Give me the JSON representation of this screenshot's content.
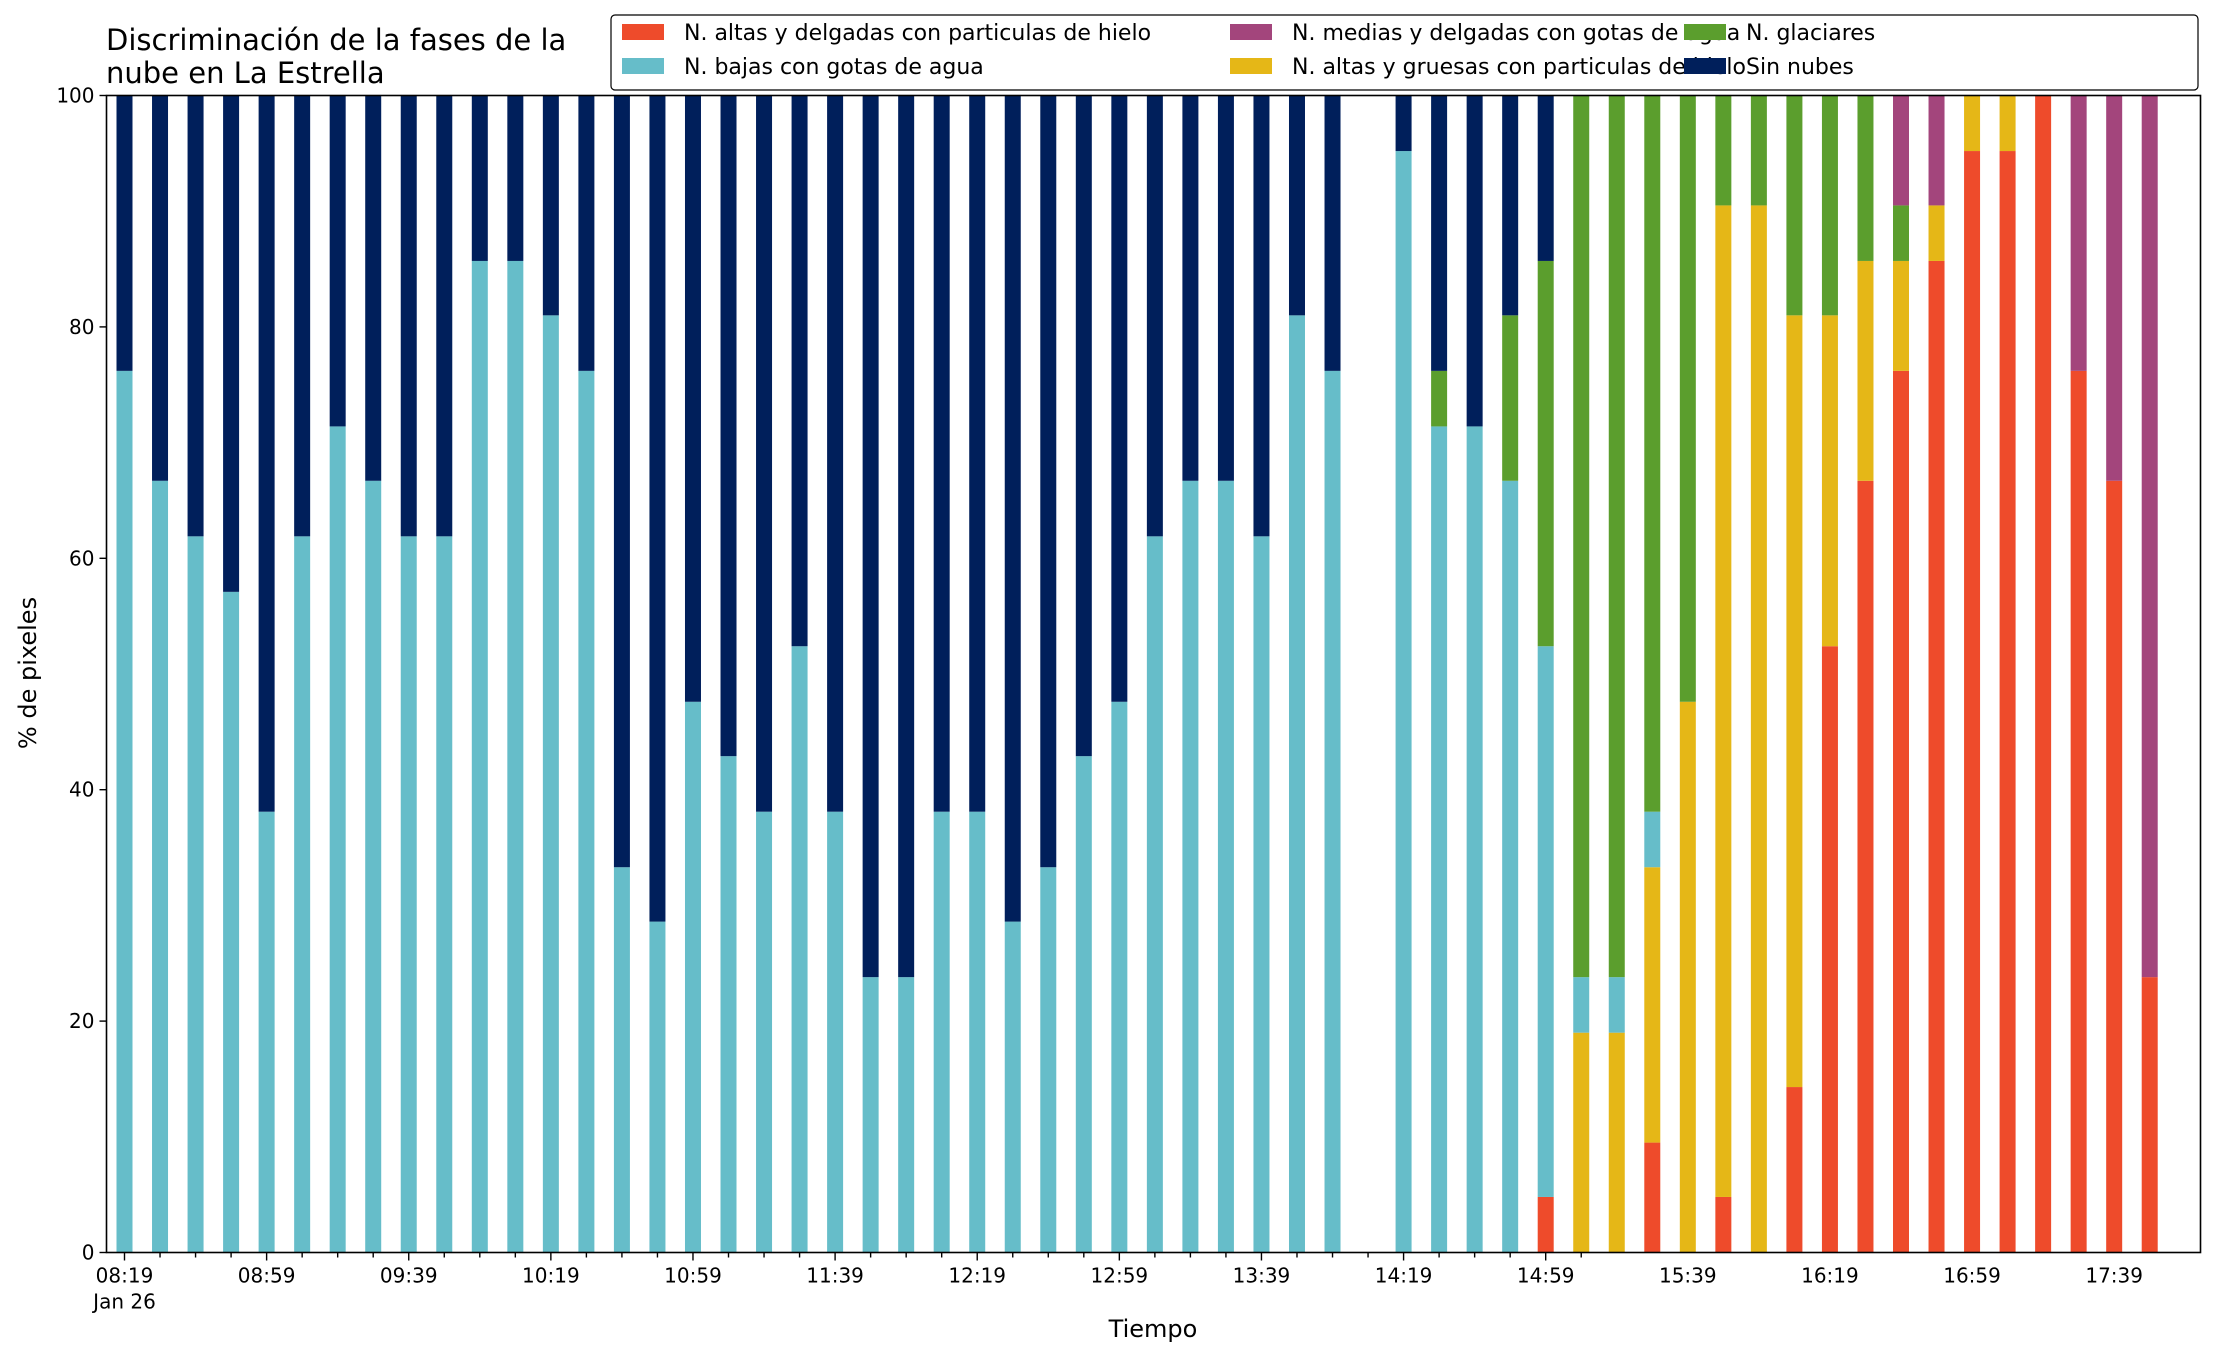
{
  "chart_data": {
    "type": "bar",
    "stacked": true,
    "title_lines": [
      "Discriminación de la fases de la",
      "nube en La Estrella"
    ],
    "xlabel": "Tiempo",
    "ylabel": "% de pixeles",
    "ylim": [
      0,
      100
    ],
    "yticks": [
      "0",
      "20",
      "40",
      "60",
      "80",
      "100"
    ],
    "xtick_labels": [
      "08:19",
      "08:59",
      "09:39",
      "10:19",
      "10:59",
      "11:39",
      "12:19",
      "12:59",
      "13:39",
      "14:19",
      "14:59",
      "15:39",
      "16:19",
      "16:59",
      "17:39"
    ],
    "xtick_sublabel": "Jan 26",
    "grid": false,
    "legend_position": "top-right",
    "series_order_bottom_to_top": [
      "altas_delgadas",
      "altas_gruesas",
      "bajas",
      "glaciares",
      "medias",
      "sin_nubes"
    ],
    "legend": [
      {
        "key": "altas_delgadas",
        "name": "N. altas y delgadas con particulas de hielo",
        "color": "#ee4b2b"
      },
      {
        "key": "bajas",
        "name": "N. bajas con gotas de agua",
        "color": "#66bdc9"
      },
      {
        "key": "medias",
        "name": "N. medias y delgadas con gotas de agua",
        "color": "#a3457c"
      },
      {
        "key": "altas_gruesas",
        "name": "N. altas y gruesas con particulas de hielo",
        "color": "#e5b717"
      },
      {
        "key": "glaciares",
        "name": "N. glaciares",
        "color": "#5b9e2d"
      },
      {
        "key": "sin_nubes",
        "name": "Sin nubes",
        "color": "#001f5b"
      }
    ],
    "bars": [
      {
        "altas_delgadas": 0,
        "altas_gruesas": 0,
        "bajas": 76.2,
        "glaciares": 0,
        "medias": 0,
        "sin_nubes": 23.8
      },
      {
        "altas_delgadas": 0,
        "altas_gruesas": 0,
        "bajas": 66.7,
        "glaciares": 0,
        "medias": 0,
        "sin_nubes": 33.3
      },
      {
        "altas_delgadas": 0,
        "altas_gruesas": 0,
        "bajas": 61.9,
        "glaciares": 0,
        "medias": 0,
        "sin_nubes": 38.1
      },
      {
        "altas_delgadas": 0,
        "altas_gruesas": 0,
        "bajas": 57.1,
        "glaciares": 0,
        "medias": 0,
        "sin_nubes": 42.9
      },
      {
        "altas_delgadas": 0,
        "altas_gruesas": 0,
        "bajas": 38.1,
        "glaciares": 0,
        "medias": 0,
        "sin_nubes": 61.9
      },
      {
        "altas_delgadas": 0,
        "altas_gruesas": 0,
        "bajas": 61.9,
        "glaciares": 0,
        "medias": 0,
        "sin_nubes": 38.1
      },
      {
        "altas_delgadas": 0,
        "altas_gruesas": 0,
        "bajas": 71.4,
        "glaciares": 0,
        "medias": 0,
        "sin_nubes": 28.6
      },
      {
        "altas_delgadas": 0,
        "altas_gruesas": 0,
        "bajas": 66.7,
        "glaciares": 0,
        "medias": 0,
        "sin_nubes": 33.3
      },
      {
        "altas_delgadas": 0,
        "altas_gruesas": 0,
        "bajas": 61.9,
        "glaciares": 0,
        "medias": 0,
        "sin_nubes": 38.1
      },
      {
        "altas_delgadas": 0,
        "altas_gruesas": 0,
        "bajas": 61.9,
        "glaciares": 0,
        "medias": 0,
        "sin_nubes": 38.1
      },
      {
        "altas_delgadas": 0,
        "altas_gruesas": 0,
        "bajas": 85.7,
        "glaciares": 0,
        "medias": 0,
        "sin_nubes": 14.3
      },
      {
        "altas_delgadas": 0,
        "altas_gruesas": 0,
        "bajas": 85.7,
        "glaciares": 0,
        "medias": 0,
        "sin_nubes": 14.3
      },
      {
        "altas_delgadas": 0,
        "altas_gruesas": 0,
        "bajas": 81.0,
        "glaciares": 0,
        "medias": 0,
        "sin_nubes": 19.0
      },
      {
        "altas_delgadas": 0,
        "altas_gruesas": 0,
        "bajas": 76.2,
        "glaciares": 0,
        "medias": 0,
        "sin_nubes": 23.8
      },
      {
        "altas_delgadas": 0,
        "altas_gruesas": 0,
        "bajas": 33.3,
        "glaciares": 0,
        "medias": 0,
        "sin_nubes": 66.7
      },
      {
        "altas_delgadas": 0,
        "altas_gruesas": 0,
        "bajas": 28.6,
        "glaciares": 0,
        "medias": 0,
        "sin_nubes": 71.4
      },
      {
        "altas_delgadas": 0,
        "altas_gruesas": 0,
        "bajas": 47.6,
        "glaciares": 0,
        "medias": 0,
        "sin_nubes": 52.4
      },
      {
        "altas_delgadas": 0,
        "altas_gruesas": 0,
        "bajas": 42.9,
        "glaciares": 0,
        "medias": 0,
        "sin_nubes": 57.1
      },
      {
        "altas_delgadas": 0,
        "altas_gruesas": 0,
        "bajas": 38.1,
        "glaciares": 0,
        "medias": 0,
        "sin_nubes": 61.9
      },
      {
        "altas_delgadas": 0,
        "altas_gruesas": 0,
        "bajas": 52.4,
        "glaciares": 0,
        "medias": 0,
        "sin_nubes": 47.6
      },
      {
        "altas_delgadas": 0,
        "altas_gruesas": 0,
        "bajas": 38.1,
        "glaciares": 0,
        "medias": 0,
        "sin_nubes": 61.9
      },
      {
        "altas_delgadas": 0,
        "altas_gruesas": 0,
        "bajas": 23.8,
        "glaciares": 0,
        "medias": 0,
        "sin_nubes": 76.2
      },
      {
        "altas_delgadas": 0,
        "altas_gruesas": 0,
        "bajas": 23.8,
        "glaciares": 0,
        "medias": 0,
        "sin_nubes": 76.2
      },
      {
        "altas_delgadas": 0,
        "altas_gruesas": 0,
        "bajas": 38.1,
        "glaciares": 0,
        "medias": 0,
        "sin_nubes": 61.9
      },
      {
        "altas_delgadas": 0,
        "altas_gruesas": 0,
        "bajas": 38.1,
        "glaciares": 0,
        "medias": 0,
        "sin_nubes": 61.9
      },
      {
        "altas_delgadas": 0,
        "altas_gruesas": 0,
        "bajas": 28.6,
        "glaciares": 0,
        "medias": 0,
        "sin_nubes": 71.4
      },
      {
        "altas_delgadas": 0,
        "altas_gruesas": 0,
        "bajas": 33.3,
        "glaciares": 0,
        "medias": 0,
        "sin_nubes": 66.7
      },
      {
        "altas_delgadas": 0,
        "altas_gruesas": 0,
        "bajas": 42.9,
        "glaciares": 0,
        "medias": 0,
        "sin_nubes": 57.1
      },
      {
        "altas_delgadas": 0,
        "altas_gruesas": 0,
        "bajas": 47.6,
        "glaciares": 0,
        "medias": 0,
        "sin_nubes": 52.4
      },
      {
        "altas_delgadas": 0,
        "altas_gruesas": 0,
        "bajas": 61.9,
        "glaciares": 0,
        "medias": 0,
        "sin_nubes": 38.1
      },
      {
        "altas_delgadas": 0,
        "altas_gruesas": 0,
        "bajas": 66.7,
        "glaciares": 0,
        "medias": 0,
        "sin_nubes": 33.3
      },
      {
        "altas_delgadas": 0,
        "altas_gruesas": 0,
        "bajas": 66.7,
        "glaciares": 0,
        "medias": 0,
        "sin_nubes": 33.3
      },
      {
        "altas_delgadas": 0,
        "altas_gruesas": 0,
        "bajas": 61.9,
        "glaciares": 0,
        "medias": 0,
        "sin_nubes": 38.1
      },
      {
        "altas_delgadas": 0,
        "altas_gruesas": 0,
        "bajas": 81.0,
        "glaciares": 0,
        "medias": 0,
        "sin_nubes": 19.0
      },
      {
        "altas_delgadas": 0,
        "altas_gruesas": 0,
        "bajas": 76.2,
        "glaciares": 0,
        "medias": 0,
        "sin_nubes": 23.8
      },
      null,
      {
        "altas_delgadas": 0,
        "altas_gruesas": 0,
        "bajas": 95.2,
        "glaciares": 0,
        "medias": 0,
        "sin_nubes": 4.8
      },
      {
        "altas_delgadas": 0,
        "altas_gruesas": 0,
        "bajas": 71.4,
        "glaciares": 4.8,
        "medias": 0,
        "sin_nubes": 23.8
      },
      {
        "altas_delgadas": 0,
        "altas_gruesas": 0,
        "bajas": 71.4,
        "glaciares": 0,
        "medias": 0,
        "sin_nubes": 28.6
      },
      {
        "altas_delgadas": 0,
        "altas_gruesas": 0,
        "bajas": 66.7,
        "glaciares": 14.3,
        "medias": 0,
        "sin_nubes": 19.0
      },
      {
        "altas_delgadas": 4.8,
        "altas_gruesas": 0,
        "bajas": 47.6,
        "glaciares": 33.3,
        "medias": 0,
        "sin_nubes": 14.3
      },
      {
        "altas_delgadas": 0,
        "altas_gruesas": 19.0,
        "bajas": 4.8,
        "glaciares": 76.2,
        "medias": 0,
        "sin_nubes": 0
      },
      {
        "altas_delgadas": 0,
        "altas_gruesas": 19.0,
        "bajas": 4.8,
        "glaciares": 76.2,
        "medias": 0,
        "sin_nubes": 0
      },
      {
        "altas_delgadas": 9.5,
        "altas_gruesas": 23.8,
        "bajas": 4.8,
        "glaciares": 61.9,
        "medias": 0,
        "sin_nubes": 0
      },
      {
        "altas_delgadas": 0,
        "altas_gruesas": 47.6,
        "bajas": 0,
        "glaciares": 52.4,
        "medias": 0,
        "sin_nubes": 0
      },
      {
        "altas_delgadas": 4.8,
        "altas_gruesas": 85.7,
        "bajas": 0,
        "glaciares": 9.5,
        "medias": 0,
        "sin_nubes": 0
      },
      {
        "altas_delgadas": 0,
        "altas_gruesas": 90.5,
        "bajas": 0,
        "glaciares": 9.5,
        "medias": 0,
        "sin_nubes": 0
      },
      {
        "altas_delgadas": 14.3,
        "altas_gruesas": 66.7,
        "bajas": 0,
        "glaciares": 19.0,
        "medias": 0,
        "sin_nubes": 0
      },
      {
        "altas_delgadas": 52.4,
        "altas_gruesas": 28.6,
        "bajas": 0,
        "glaciares": 19.0,
        "medias": 0,
        "sin_nubes": 0
      },
      {
        "altas_delgadas": 66.7,
        "altas_gruesas": 19.0,
        "bajas": 0,
        "glaciares": 14.3,
        "medias": 0,
        "sin_nubes": 0
      },
      {
        "altas_delgadas": 76.2,
        "altas_gruesas": 9.5,
        "bajas": 0,
        "glaciares": 4.8,
        "medias": 9.5,
        "sin_nubes": 0
      },
      {
        "altas_delgadas": 85.7,
        "altas_gruesas": 4.8,
        "bajas": 0,
        "glaciares": 0,
        "medias": 9.5,
        "sin_nubes": 0
      },
      {
        "altas_delgadas": 95.2,
        "altas_gruesas": 4.8,
        "bajas": 0,
        "glaciares": 0,
        "medias": 0,
        "sin_nubes": 0
      },
      {
        "altas_delgadas": 95.2,
        "altas_gruesas": 4.8,
        "bajas": 0,
        "glaciares": 0,
        "medias": 0,
        "sin_nubes": 0
      },
      {
        "altas_delgadas": 100,
        "altas_gruesas": 0,
        "bajas": 0,
        "glaciares": 0,
        "medias": 0,
        "sin_nubes": 0
      },
      {
        "altas_delgadas": 76.2,
        "altas_gruesas": 0,
        "bajas": 0,
        "glaciares": 0,
        "medias": 23.8,
        "sin_nubes": 0
      },
      {
        "altas_delgadas": 66.7,
        "altas_gruesas": 0,
        "bajas": 0,
        "glaciares": 0,
        "medias": 33.3,
        "sin_nubes": 0
      },
      {
        "altas_delgadas": 23.8,
        "altas_gruesas": 0,
        "bajas": 0,
        "glaciares": 0,
        "medias": 76.2,
        "sin_nubes": 0
      }
    ]
  }
}
